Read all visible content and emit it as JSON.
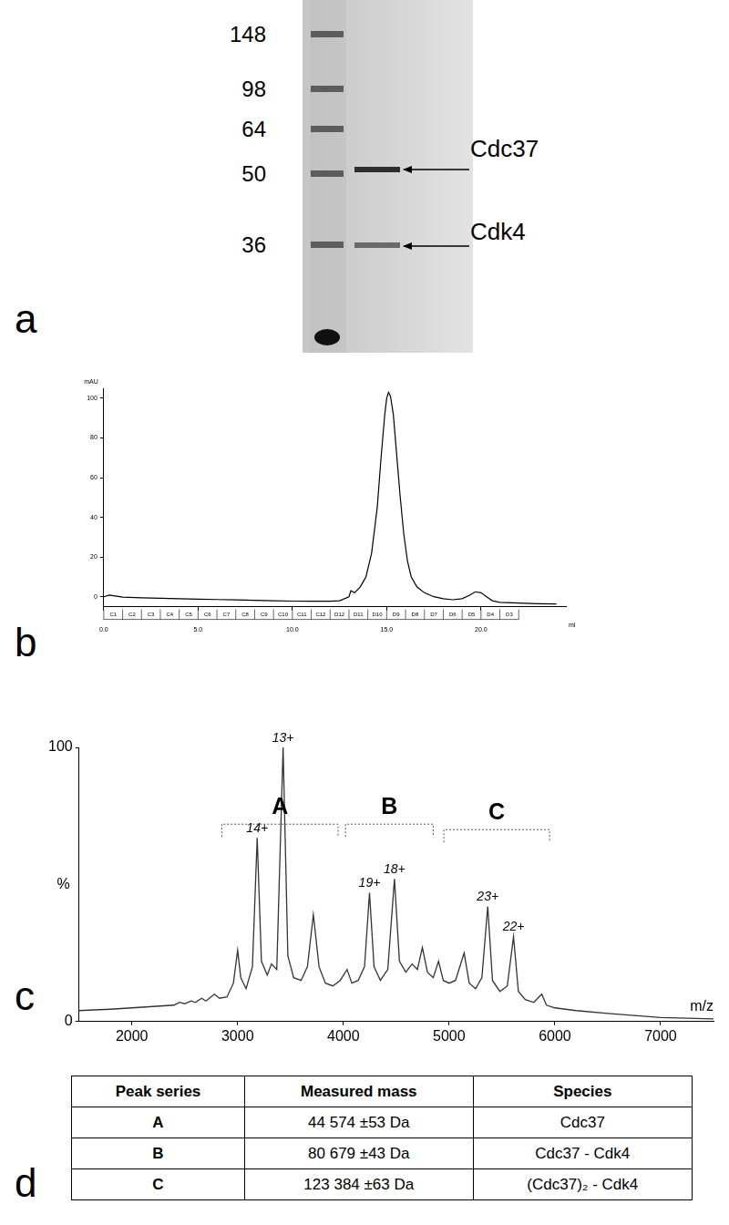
{
  "panel_labels": [
    "a",
    "b",
    "c",
    "d"
  ],
  "gel": {
    "markers": [
      148,
      98,
      64,
      50,
      36
    ],
    "bands": [
      "Cdc37",
      "Cdk4"
    ]
  },
  "chart_data": [
    {
      "type": "line",
      "x_label": "ml",
      "y_label": "mAU",
      "color": "#000000",
      "grid": false,
      "x": [
        0,
        0.3,
        1,
        2,
        3,
        4,
        5,
        6,
        7,
        8,
        9,
        10,
        11,
        12,
        12.5,
        13,
        13.1,
        13.3,
        13.6,
        13.9,
        14.2,
        14.5,
        14.7,
        14.9,
        15.0,
        15.1,
        15.2,
        15.35,
        15.5,
        15.7,
        15.9,
        16.1,
        16.3,
        16.6,
        17,
        17.5,
        18,
        18.5,
        19,
        19.4,
        19.7,
        20,
        20.3,
        20.6,
        21,
        22,
        23,
        24
      ],
      "values": [
        0,
        0.8,
        -0.2,
        -0.5,
        -0.8,
        -1.0,
        -1.2,
        -1.4,
        -1.6,
        -1.8,
        -2.0,
        -2.2,
        -2.3,
        -2.3,
        -2.0,
        0,
        3,
        2,
        5,
        10,
        22,
        45,
        70,
        92,
        100,
        103,
        101,
        92,
        75,
        52,
        32,
        18,
        10,
        5,
        2,
        0,
        -1,
        -1.5,
        -1,
        0.8,
        2.5,
        2,
        0,
        -2,
        -2.8,
        -3.2,
        -3.5,
        -3.6
      ],
      "xlim": [
        0,
        24.5
      ],
      "ylim": [
        -5,
        105
      ],
      "xticks": [
        {
          "value": 0,
          "label": "0.0"
        },
        {
          "value": 5,
          "label": "5.0"
        },
        {
          "value": 10,
          "label": "10.0"
        },
        {
          "value": 15,
          "label": "15.0"
        },
        {
          "value": 20,
          "label": "20.0"
        }
      ],
      "yticks": [
        0,
        20,
        40,
        60,
        80,
        100
      ],
      "fractions": [
        "C1",
        "C2",
        "C3",
        "C4",
        "C5",
        "C6",
        "C7",
        "C8",
        "C9",
        "C10",
        "C11",
        "C12",
        "D12",
        "D11",
        "D10",
        "D9",
        "D8",
        "D7",
        "D6",
        "D5",
        "D4",
        "D3"
      ],
      "fraction_edges": [
        0,
        1,
        2,
        3,
        4,
        5,
        6,
        7,
        8,
        9,
        10,
        11,
        12,
        13,
        14,
        15,
        16,
        17,
        18,
        19,
        20,
        21,
        22
      ]
    },
    {
      "type": "line",
      "x_label": "m/z",
      "y_label": "%",
      "color": "#333333",
      "grid": false,
      "x": [
        1500,
        1800,
        2000,
        2200,
        2400,
        2450,
        2500,
        2560,
        2600,
        2660,
        2700,
        2780,
        2830,
        2900,
        2960,
        3000,
        3030,
        3080,
        3140,
        3185,
        3225,
        3280,
        3320,
        3370,
        3430,
        3475,
        3530,
        3600,
        3660,
        3716,
        3770,
        3830,
        3900,
        3970,
        4035,
        4080,
        4140,
        4200,
        4247,
        4290,
        4350,
        4420,
        4483,
        4530,
        4590,
        4650,
        4700,
        4747,
        4795,
        4850,
        4900,
        4945,
        5000,
        5060,
        5142,
        5190,
        5250,
        5310,
        5365,
        5410,
        5480,
        5550,
        5609,
        5655,
        5720,
        5800,
        5876,
        5920,
        6000,
        6200,
        6500,
        7000,
        7500
      ],
      "values": [
        4,
        4.5,
        5,
        5.5,
        6,
        7,
        6.5,
        7.5,
        7,
        8.5,
        7.5,
        10,
        8.5,
        9,
        14,
        26,
        16,
        12,
        20,
        67,
        22,
        17,
        21,
        19,
        100,
        24,
        16,
        15,
        20,
        39,
        20,
        14,
        13,
        15,
        19,
        14,
        15,
        20,
        47,
        20,
        15,
        19,
        52,
        22,
        18,
        21,
        19,
        27,
        18,
        16,
        22,
        15,
        14,
        15,
        25,
        14,
        12,
        16,
        42,
        15,
        11,
        13,
        31,
        11,
        8,
        7,
        10,
        6,
        5,
        4,
        3,
        1.5,
        1
      ],
      "xlim": [
        1500,
        7500
      ],
      "ylim": [
        0,
        100
      ],
      "xticks": [
        2000,
        3000,
        4000,
        5000,
        6000,
        7000
      ],
      "yticks": [
        0,
        100
      ],
      "annotations": [
        {
          "text": "14+",
          "x": 3185,
          "y": 67
        },
        {
          "text": "13+",
          "x": 3430,
          "y": 100
        },
        {
          "text": "19+",
          "x": 4247,
          "y": 47
        },
        {
          "text": "18+",
          "x": 4483,
          "y": 52
        },
        {
          "text": "23+",
          "x": 5365,
          "y": 42
        },
        {
          "text": "22+",
          "x": 5609,
          "y": 31
        }
      ],
      "brackets": [
        {
          "label": "A",
          "from": 2850,
          "to": 3950,
          "y": 72
        },
        {
          "label": "B",
          "from": 4020,
          "to": 4850,
          "y": 72
        },
        {
          "label": "C",
          "from": 4950,
          "to": 5950,
          "y": 70
        }
      ]
    }
  ],
  "table": {
    "header": [
      "Peak series",
      "Measured mass",
      "Species"
    ],
    "rows": [
      [
        "A",
        "44 574 ±53 Da",
        "Cdc37"
      ],
      [
        "B",
        "80 679 ±43 Da",
        "Cdc37 - Cdk4"
      ],
      [
        "C",
        "123 384 ±63 Da",
        "(Cdc37)₂ - Cdk4"
      ]
    ]
  }
}
